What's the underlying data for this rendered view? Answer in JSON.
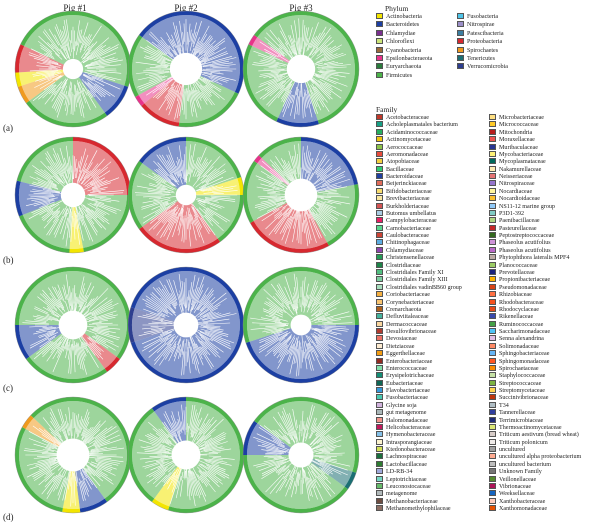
{
  "columns": [
    "Pig #1",
    "Pig #2",
    "Pig #3"
  ],
  "rows": [
    "(a)",
    "(b)",
    "(c)",
    "(d)"
  ],
  "phylum_legend": {
    "title": "Phylum",
    "items": [
      {
        "name": "Actinobacteria",
        "color": "#f3e500"
      },
      {
        "name": "Bacteroidetes",
        "color": "#1c3fa3"
      },
      {
        "name": "Chlamydiae",
        "color": "#7a2f8f"
      },
      {
        "name": "Chloroflexi",
        "color": "#cde57a"
      },
      {
        "name": "Cyanobacteria",
        "color": "#9a6a3a"
      },
      {
        "name": "Epsilonbacteraeota",
        "color": "#e8338a"
      },
      {
        "name": "Euryarchaeota",
        "color": "#2a7d3c"
      },
      {
        "name": "Firmicutes",
        "color": "#4cb34a"
      },
      {
        "name": "Fusobacteria",
        "color": "#4fc4e8"
      },
      {
        "name": "Nitrospirae",
        "color": "#9b8fc8"
      },
      {
        "name": "Patescibacteria",
        "color": "#3b7ea1"
      },
      {
        "name": "Proteobacteria",
        "color": "#d7282f"
      },
      {
        "name": "Spirochaetes",
        "color": "#f09a1e"
      },
      {
        "name": "Tenericutes",
        "color": "#1b6f73"
      },
      {
        "name": "Verrucomicrobia",
        "color": "#2d3e8f"
      }
    ]
  },
  "family_legend": {
    "title": "Family",
    "items": [
      {
        "name": "Acetobacteraceae",
        "color": "#c0392b"
      },
      {
        "name": "Acholeplasmatales bacterium",
        "color": "#16a085"
      },
      {
        "name": "Acidaminococcaceae",
        "color": "#27ae60"
      },
      {
        "name": "Actinomycetaceae",
        "color": "#f1c40f"
      },
      {
        "name": "Aerococcaceae",
        "color": "#8bc34a"
      },
      {
        "name": "Aeromonadaceae",
        "color": "#e74c3c"
      },
      {
        "name": "Atopobiaceae",
        "color": "#f4d03f"
      },
      {
        "name": "Bacillaceae",
        "color": "#2ecc71"
      },
      {
        "name": "Bacteroidaceae",
        "color": "#1f3fa0"
      },
      {
        "name": "Beijerinckiaceae",
        "color": "#e06c5a"
      },
      {
        "name": "Bifidobacteriaceae",
        "color": "#f7dc6f"
      },
      {
        "name": "Brevibacteriaceae",
        "color": "#f9e79f"
      },
      {
        "name": "Burkholderiaceae",
        "color": "#d35454"
      },
      {
        "name": "Butomus umbellatus",
        "color": "#a9cce3"
      },
      {
        "name": "Campylobacteraceae",
        "color": "#e91e63"
      },
      {
        "name": "Carnobacteriaceae",
        "color": "#58d68d"
      },
      {
        "name": "Caulobacteraceae",
        "color": "#cb4335"
      },
      {
        "name": "Chitinophagaceae",
        "color": "#5dade2"
      },
      {
        "name": "Chlamydiaceae",
        "color": "#8e44ad"
      },
      {
        "name": "Christensenellaceae",
        "color": "#239b56"
      },
      {
        "name": "Clostridiaceae",
        "color": "#1e8449"
      },
      {
        "name": "Clostridiales Family XI",
        "color": "#52be80"
      },
      {
        "name": "Clostridiales Family XIII",
        "color": "#7dcea0"
      },
      {
        "name": "Clostridiales vadinBB60 group",
        "color": "#a9dfbf"
      },
      {
        "name": "Coriobacteriaceae",
        "color": "#f5b041"
      },
      {
        "name": "Corynebacteriaceae",
        "color": "#f8c471"
      },
      {
        "name": "Crenarchaeota",
        "color": "#af601a"
      },
      {
        "name": "Defluviitaleaceae",
        "color": "#45b39d"
      },
      {
        "name": "Dermacoccaceae",
        "color": "#fad7a0"
      },
      {
        "name": "Desulfovibrionaceae",
        "color": "#b03a2e"
      },
      {
        "name": "Devosiaceae",
        "color": "#ec7063"
      },
      {
        "name": "Dietziaceae",
        "color": "#fdebd0"
      },
      {
        "name": "Eggerthellaceae",
        "color": "#f39c12"
      },
      {
        "name": "Enterobacteriaceae",
        "color": "#922b21"
      },
      {
        "name": "Enterococcaceae",
        "color": "#82e0aa"
      },
      {
        "name": "Erysipelotrichaceae",
        "color": "#138d75"
      },
      {
        "name": "Eubacteriaceae",
        "color": "#0e6655"
      },
      {
        "name": "Flavobacteriaceae",
        "color": "#3498db"
      },
      {
        "name": "Fusobacteriaceae",
        "color": "#48c9b0"
      },
      {
        "name": "Glycine soja",
        "color": "#d2b4de"
      },
      {
        "name": "gut metagenome",
        "color": "#aab7b8"
      },
      {
        "name": "Halomonadaceae",
        "color": "#f1948a"
      },
      {
        "name": "Helicobacteraceae",
        "color": "#c2185b"
      },
      {
        "name": "Hymenobacteraceae",
        "color": "#85c1e9"
      },
      {
        "name": "Intrasporangiaceae",
        "color": "#fcf3cf"
      },
      {
        "name": "Ktedonobacteraceae",
        "color": "#d4e157"
      },
      {
        "name": "Lachnospiraceae",
        "color": "#196f3d"
      },
      {
        "name": "Lactobacillaceae",
        "color": "#2e7d32"
      },
      {
        "name": "LD-RB-34",
        "color": "#9fa8da"
      },
      {
        "name": "Leptotrichiaceae",
        "color": "#76d7c4"
      },
      {
        "name": "Leuconostocaceae",
        "color": "#66bb6a"
      },
      {
        "name": "metagenome",
        "color": "#b2babb"
      },
      {
        "name": "Methanobacteriaceae",
        "color": "#6d4c41"
      },
      {
        "name": "Methanomethylophilaceae",
        "color": "#8d6e63"
      },
      {
        "name": "Microbacteriaceae",
        "color": "#ffe082"
      },
      {
        "name": "Micrococcaceae",
        "color": "#ffca28"
      },
      {
        "name": "Mitochondria",
        "color": "#b71c1c"
      },
      {
        "name": "Moraxellaceae",
        "color": "#ef5350"
      },
      {
        "name": "Muribaculaceae",
        "color": "#283593"
      },
      {
        "name": "Mycobacteriaceae",
        "color": "#fff176"
      },
      {
        "name": "Mycoplasmataceae",
        "color": "#00695c"
      },
      {
        "name": "Nakamurellaceae",
        "color": "#ffecb3"
      },
      {
        "name": "Neisseriaceae",
        "color": "#e57373"
      },
      {
        "name": "Nitrospiraceae",
        "color": "#9575cd"
      },
      {
        "name": "Nocardiaceae",
        "color": "#fff59d"
      },
      {
        "name": "Nocardioidaceae",
        "color": "#fbc02d"
      },
      {
        "name": "NS11-12 marine group",
        "color": "#90caf9"
      },
      {
        "name": "P3D1-392",
        "color": "#80cbc4"
      },
      {
        "name": "Paenibacillaceae",
        "color": "#aed581"
      },
      {
        "name": "Pasteurellaceae",
        "color": "#c62828"
      },
      {
        "name": "Peptostreptococcaceae",
        "color": "#33691e"
      },
      {
        "name": "Phaseolus acutifolius",
        "color": "#ce93d8"
      },
      {
        "name": "Phaseolus acutifolius",
        "color": "#ba68c8"
      },
      {
        "name": "Phytophthora lateralis MPF4",
        "color": "#bcaaa4"
      },
      {
        "name": "Planococcaceae",
        "color": "#9ccc65"
      },
      {
        "name": "Prevotellaceae",
        "color": "#1a237e"
      },
      {
        "name": "Propionibacteriaceae",
        "color": "#ffb300"
      },
      {
        "name": "Pseudomonadaceae",
        "color": "#d84315"
      },
      {
        "name": "Rhizobiaceae",
        "color": "#ff7043"
      },
      {
        "name": "Rhodobacteraceae",
        "color": "#f4511e"
      },
      {
        "name": "Rhodocyclaceae",
        "color": "#e64a19"
      },
      {
        "name": "Rikenellaceae",
        "color": "#3949ab"
      },
      {
        "name": "Ruminococcaceae",
        "color": "#43a047"
      },
      {
        "name": "Saccharimonadaceae",
        "color": "#4fc3f7"
      },
      {
        "name": "Senna alexandrina",
        "color": "#e1bee7"
      },
      {
        "name": "Solimonadaceae",
        "color": "#ff8a65"
      },
      {
        "name": "Sphingobacteriaceae",
        "color": "#64b5f6"
      },
      {
        "name": "Sphingomonadaceae",
        "color": "#ff5722"
      },
      {
        "name": "Spirochaetaceae",
        "color": "#fb8c00"
      },
      {
        "name": "Staphylococcaceae",
        "color": "#c5e1a5"
      },
      {
        "name": "Streptococcaceae",
        "color": "#7cb342"
      },
      {
        "name": "Streptomycetaceae",
        "color": "#ffd54f"
      },
      {
        "name": "Succinivibrionaceae",
        "color": "#bf360c"
      },
      {
        "name": "T34",
        "color": "#b0bec5"
      },
      {
        "name": "Tannerellaceae",
        "color": "#303f9f"
      },
      {
        "name": "Terrimicrobiaceae",
        "color": "#1e2a78"
      },
      {
        "name": "Thermoactinomycetaceae",
        "color": "#dce775"
      },
      {
        "name": "Triticum aestivum (bread wheat)",
        "color": "#d7ccc8"
      },
      {
        "name": "Triticum polonicum",
        "color": "#efebe9"
      },
      {
        "name": "uncultured",
        "color": "#9e9e9e"
      },
      {
        "name": "uncultured alpha proteobacterium",
        "color": "#ffab91"
      },
      {
        "name": "uncultured bacterium",
        "color": "#bdbdbd"
      },
      {
        "name": "Unknown Family",
        "color": "#757575"
      },
      {
        "name": "Veillonellaceae",
        "color": "#558b2f"
      },
      {
        "name": "Vibrionaceae",
        "color": "#ad1457"
      },
      {
        "name": "Weeksellaceae",
        "color": "#1565c0"
      },
      {
        "name": "Xanthobacteraceae",
        "color": "#ffccbc"
      },
      {
        "name": "Xanthomonadaceae",
        "color": "#e65100"
      }
    ]
  }
}
